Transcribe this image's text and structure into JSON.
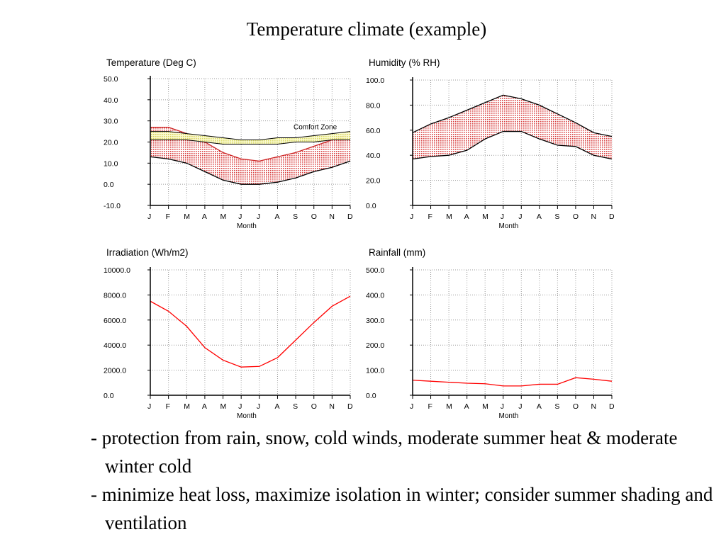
{
  "page": {
    "title": "Temperature climate (example)",
    "bullets": [
      "- protection from rain, snow, cold winds, moderate summer heat & moderate winter cold",
      "- minimize heat loss, maximize isolation in winter; consider summer shading and ventilation"
    ]
  },
  "chart_data": [
    {
      "type": "area",
      "title": "Temperature (Deg C)",
      "xlabel": "Month",
      "ylabel": "",
      "categories": [
        "J",
        "F",
        "M",
        "A",
        "M",
        "J",
        "J",
        "A",
        "S",
        "O",
        "N",
        "D"
      ],
      "ylim": [
        -10,
        50
      ],
      "yticks": [
        "50.0",
        "40.0",
        "30.0",
        "20.0",
        "10.0",
        "0.0",
        "-10.0"
      ],
      "grid": true,
      "band": {
        "max": [
          27,
          27,
          24,
          20,
          15,
          12,
          11,
          13,
          15,
          18,
          21,
          24
        ],
        "min": [
          13,
          12,
          10,
          6,
          2,
          0,
          0,
          1,
          3,
          6,
          8,
          11
        ],
        "color": "#cc2222",
        "fill": "#f6c2c2"
      },
      "comfort_zone": {
        "label": "Comfort Zone",
        "upper": [
          25,
          25,
          24,
          23,
          22,
          21,
          21,
          22,
          22,
          23,
          24,
          25
        ],
        "lower": [
          21,
          21,
          21,
          20,
          19,
          19,
          19,
          19,
          20,
          20,
          21,
          21
        ],
        "fill": "#f4f4a0",
        "color": "#000000"
      }
    },
    {
      "type": "area",
      "title": "Humidity (% RH)",
      "xlabel": "Month",
      "ylabel": "",
      "categories": [
        "J",
        "F",
        "M",
        "A",
        "M",
        "J",
        "J",
        "A",
        "S",
        "O",
        "N",
        "D"
      ],
      "ylim": [
        0,
        100
      ],
      "yticks": [
        "100.0",
        "80.0",
        "60.0",
        "40.0",
        "20.0",
        "0.0"
      ],
      "grid": true,
      "band": {
        "max": [
          58,
          65,
          70,
          76,
          82,
          88,
          85,
          80,
          73,
          66,
          58,
          55
        ],
        "min": [
          37,
          39,
          40,
          44,
          53,
          59,
          59,
          53,
          48,
          47,
          40,
          37
        ],
        "color": "#000000",
        "fill": "#f6c2c2"
      }
    },
    {
      "type": "line",
      "title": "Irradiation (Wh/m2)",
      "xlabel": "Month",
      "ylabel": "",
      "categories": [
        "J",
        "F",
        "M",
        "A",
        "M",
        "J",
        "J",
        "A",
        "S",
        "O",
        "N",
        "D"
      ],
      "ylim": [
        0,
        10000
      ],
      "yticks": [
        "10000.0",
        "8000.0",
        "6000.0",
        "4000.0",
        "2000.0",
        "0.0"
      ],
      "grid": true,
      "series": [
        {
          "values": [
            7500,
            6700,
            5500,
            3800,
            2800,
            2250,
            2300,
            3000,
            4400,
            5800,
            7100,
            7900
          ],
          "color": "#ff0000"
        }
      ]
    },
    {
      "type": "line",
      "title": "Rainfall (mm)",
      "xlabel": "Month",
      "ylabel": "",
      "categories": [
        "J",
        "F",
        "M",
        "A",
        "M",
        "J",
        "J",
        "A",
        "S",
        "O",
        "N",
        "D"
      ],
      "ylim": [
        0,
        500
      ],
      "yticks": [
        "500.0",
        "400.0",
        "300.0",
        "200.0",
        "100.0",
        "0.0"
      ],
      "grid": true,
      "series": [
        {
          "values": [
            60,
            56,
            52,
            48,
            46,
            37,
            37,
            44,
            44,
            70,
            64,
            56
          ],
          "color": "#ff0000"
        }
      ]
    }
  ]
}
